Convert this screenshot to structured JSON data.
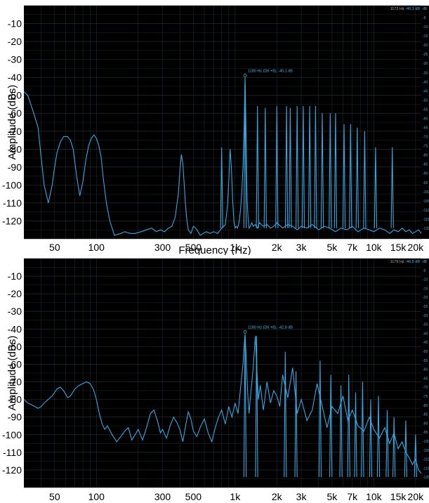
{
  "chart_data": [
    {
      "type": "line",
      "title": "",
      "xlabel": "Frequency (Hz)",
      "ylabel": "Amplitude (dBs)",
      "xscale": "log",
      "xlim": [
        30,
        22000
      ],
      "ylim": [
        -130,
        0
      ],
      "grid": true,
      "xticks": [
        "50",
        "100",
        "300",
        "500",
        "1k",
        "2k",
        "3k",
        "5k",
        "7k",
        "10k",
        "15k",
        "20k"
      ],
      "xtick_values": [
        50,
        100,
        300,
        500,
        1000,
        2000,
        3000,
        5000,
        7000,
        10000,
        15000,
        20000
      ],
      "yticks": [
        "-10",
        "-20",
        "-30",
        "-40",
        "-50",
        "-60",
        "-70",
        "-80",
        "-90",
        "-100",
        "-110",
        "-120"
      ],
      "ytick_values": [
        -10,
        -20,
        -30,
        -40,
        -50,
        -60,
        -70,
        -80,
        -90,
        -100,
        -110,
        -120
      ],
      "right_ticks": [
        "dB",
        "-5",
        "-10",
        "-15",
        "-20",
        "-25",
        "-30",
        "-35",
        "-40",
        "-45",
        "-50",
        "-55",
        "-60",
        "-65",
        "-70",
        "-75",
        "-80",
        "-85",
        "-90",
        "-95",
        "-100",
        "-105",
        "-110",
        "-115",
        "-120"
      ],
      "cursor_freq": "1173 Hz",
      "cursor_value": "-40,1 dB",
      "annotation": "1180 Hz (D6 +8), -40,1 dB",
      "marker": {
        "x": 1180,
        "y": -40.1
      },
      "line_color": "#3aa6e0",
      "series": [
        {
          "x": [
            30,
            32,
            34,
            36,
            38,
            40,
            42,
            45,
            48,
            50,
            52,
            55,
            58,
            62,
            65,
            68,
            72,
            76,
            80,
            84,
            88,
            92,
            96,
            100,
            104,
            108,
            112,
            118,
            125,
            135,
            150,
            160,
            175,
            190,
            210,
            230,
            250,
            270,
            290,
            310,
            330,
            350,
            370,
            390,
            400,
            410,
            420,
            430,
            440,
            450,
            460,
            480,
            500,
            520,
            540,
            560,
            590,
            620,
            660,
            700,
            750,
            800,
            850,
            880,
            900,
            920,
            940,
            960,
            980,
            1000,
            1020,
            1040,
            1060,
            1080,
            1100,
            1120,
            1140,
            1160,
            1170,
            1180,
            1190,
            1200,
            1210,
            1220,
            1240,
            1260,
            1290,
            1320,
            1350,
            1400,
            1450,
            1500,
            1600,
            1700,
            1800,
            1900,
            2000,
            2200,
            2400,
            2600,
            2800,
            3000,
            3300,
            3600,
            4000,
            4400,
            4800,
            5300,
            5800,
            6400,
            7000,
            7700,
            8500,
            9300,
            10000,
            11000,
            12000,
            13000,
            14000,
            15000,
            16000,
            17000,
            18000,
            19000,
            20000,
            21000,
            22000
          ],
          "y": [
            -48,
            -50,
            -56,
            -62,
            -68,
            -85,
            -100,
            -110,
            -100,
            -90,
            -82,
            -76,
            -73,
            -73,
            -75,
            -80,
            -95,
            -106,
            -98,
            -86,
            -78,
            -74,
            -72,
            -74,
            -78,
            -84,
            -96,
            -110,
            -120,
            -128,
            -127,
            -126,
            -127,
            -127,
            -126,
            -125,
            -124,
            -126,
            -125,
            -126,
            -124,
            -123,
            -118,
            -105,
            -92,
            -83,
            -88,
            -100,
            -112,
            -120,
            -125,
            -127,
            -123,
            -124,
            -126,
            -128,
            -127,
            -126,
            -127,
            -126,
            -127,
            -124,
            -122,
            -112,
            -98,
            -80,
            -90,
            -108,
            -120,
            -124,
            -123,
            -124,
            -122,
            -118,
            -112,
            -103,
            -90,
            -70,
            -55,
            -41,
            -55,
            -72,
            -92,
            -108,
            -118,
            -124,
            -123,
            -121,
            -123,
            -122,
            -124,
            -121,
            -123,
            -122,
            -124,
            -123,
            -121,
            -124,
            -122,
            -123,
            -125,
            -123,
            -124,
            -122,
            -125,
            -123,
            -124,
            -126,
            -124,
            -125,
            -123,
            -126,
            -124,
            -125,
            -126,
            -124,
            -125,
            -127,
            -125,
            -126,
            -124,
            -126,
            -125,
            -127,
            -126,
            -125,
            -127
          ]
        }
      ],
      "harmonics": [
        {
          "x": 800,
          "y": -79
        },
        {
          "x": 1180,
          "y": -40.1
        },
        {
          "x": 1450,
          "y": -56
        },
        {
          "x": 1650,
          "y": -57
        },
        {
          "x": 2000,
          "y": -56
        },
        {
          "x": 2350,
          "y": -56
        },
        {
          "x": 2500,
          "y": -57
        },
        {
          "x": 2800,
          "y": -56
        },
        {
          "x": 3100,
          "y": -56
        },
        {
          "x": 3450,
          "y": -56
        },
        {
          "x": 3800,
          "y": -56
        },
        {
          "x": 4250,
          "y": -60
        },
        {
          "x": 4850,
          "y": -60
        },
        {
          "x": 5300,
          "y": -60
        },
        {
          "x": 6100,
          "y": -66
        },
        {
          "x": 6800,
          "y": -66
        },
        {
          "x": 7600,
          "y": -68
        },
        {
          "x": 8600,
          "y": -70
        },
        {
          "x": 10300,
          "y": -79
        },
        {
          "x": 13600,
          "y": -79
        }
      ]
    },
    {
      "type": "line",
      "title": "",
      "xlabel": "",
      "ylabel": "Amplitude (dBs)",
      "xscale": "log",
      "xlim": [
        30,
        22000
      ],
      "ylim": [
        -130,
        0
      ],
      "grid": true,
      "xticks": [
        "50",
        "100",
        "300",
        "500",
        "1k",
        "2k",
        "3k",
        "5k",
        "7k",
        "10k",
        "15k",
        "20k"
      ],
      "xtick_values": [
        50,
        100,
        300,
        500,
        1000,
        2000,
        3000,
        5000,
        7000,
        10000,
        15000,
        20000
      ],
      "yticks": [
        "-10",
        "-20",
        "-30",
        "-40",
        "-50",
        "-60",
        "-70",
        "-80",
        "-90",
        "-100",
        "-110",
        "-120"
      ],
      "ytick_values": [
        -10,
        -20,
        -30,
        -40,
        -50,
        -60,
        -70,
        -80,
        -90,
        -100,
        -110,
        -120
      ],
      "right_ticks": [
        "dB",
        "-5",
        "-10",
        "-15",
        "-20",
        "-25",
        "-30",
        "-35",
        "-40",
        "-45",
        "-50",
        "-55",
        "-60",
        "-65",
        "-70",
        "-75",
        "-80",
        "-85",
        "-90",
        "-95",
        "-100",
        "-105",
        "-110",
        "-115",
        "-120"
      ],
      "cursor_freq": "1179 Hz",
      "cursor_value": "-46,5 dB",
      "annotation": "1180 Hz (D6 +8), -42,9 dB",
      "marker": {
        "x": 1180,
        "y": -42.9
      },
      "line_color": "#3aa6e0",
      "series": [
        {
          "x": [
            30,
            32,
            34,
            36,
            38,
            40,
            42,
            45,
            48,
            50,
            52,
            55,
            58,
            62,
            65,
            70,
            75,
            80,
            85,
            90,
            95,
            100,
            105,
            110,
            115,
            120,
            130,
            140,
            150,
            160,
            170,
            180,
            190,
            200,
            215,
            230,
            245,
            260,
            275,
            290,
            300,
            320,
            340,
            360,
            380,
            400,
            420,
            440,
            460,
            480,
            500,
            530,
            560,
            600,
            640,
            680,
            720,
            760,
            800,
            850,
            900,
            950,
            1000,
            1050,
            1100,
            1140,
            1160,
            1180,
            1200,
            1230,
            1260,
            1300,
            1350,
            1400,
            1430,
            1470,
            1520,
            1600,
            1700,
            1800,
            1900,
            2000,
            2100,
            2200,
            2400,
            2600,
            2800,
            3000,
            3300,
            3600,
            3900,
            4200,
            4600,
            5000,
            5500,
            6000,
            6500,
            7000,
            7700,
            8500,
            9300,
            10000,
            11000,
            12000,
            13000,
            14000,
            15000,
            16000,
            17000,
            18000,
            19000,
            20000,
            21000,
            22000
          ],
          "y": [
            -80,
            -82,
            -83,
            -84,
            -85,
            -84,
            -82,
            -80,
            -78,
            -76,
            -74,
            -73,
            -75,
            -79,
            -78,
            -74,
            -72,
            -71,
            -70,
            -71,
            -74,
            -80,
            -88,
            -94,
            -97,
            -95,
            -100,
            -104,
            -101,
            -98,
            -96,
            -103,
            -100,
            -97,
            -103,
            -96,
            -88,
            -86,
            -92,
            -99,
            -97,
            -102,
            -95,
            -90,
            -93,
            -97,
            -104,
            -95,
            -87,
            -91,
            -98,
            -101,
            -96,
            -91,
            -99,
            -104,
            -96,
            -90,
            -86,
            -94,
            -84,
            -90,
            -82,
            -88,
            -72,
            -60,
            -50,
            -43,
            -55,
            -75,
            -88,
            -76,
            -62,
            -44,
            -60,
            -80,
            -72,
            -86,
            -70,
            -82,
            -75,
            -78,
            -84,
            -66,
            -79,
            -62,
            -88,
            -80,
            -92,
            -86,
            -71,
            -82,
            -96,
            -84,
            -88,
            -78,
            -92,
            -86,
            -95,
            -98,
            -90,
            -97,
            -102,
            -96,
            -105,
            -99,
            -108,
            -104,
            -110,
            -113,
            -117,
            -114,
            -120,
            -122
          ]
        }
      ],
      "harmonics": [
        {
          "x": 1180,
          "y": -42.9
        },
        {
          "x": 1430,
          "y": -44
        },
        {
          "x": 2300,
          "y": -53
        },
        {
          "x": 2750,
          "y": -64
        },
        {
          "x": 4100,
          "y": -58
        },
        {
          "x": 4900,
          "y": -66
        },
        {
          "x": 5800,
          "y": -72
        },
        {
          "x": 6600,
          "y": -66
        },
        {
          "x": 7400,
          "y": -76
        },
        {
          "x": 8300,
          "y": -70
        },
        {
          "x": 9500,
          "y": -80
        },
        {
          "x": 10800,
          "y": -78
        },
        {
          "x": 12500,
          "y": -86
        },
        {
          "x": 14000,
          "y": -90
        },
        {
          "x": 17000,
          "y": -92
        },
        {
          "x": 20000,
          "y": -100
        }
      ]
    }
  ]
}
